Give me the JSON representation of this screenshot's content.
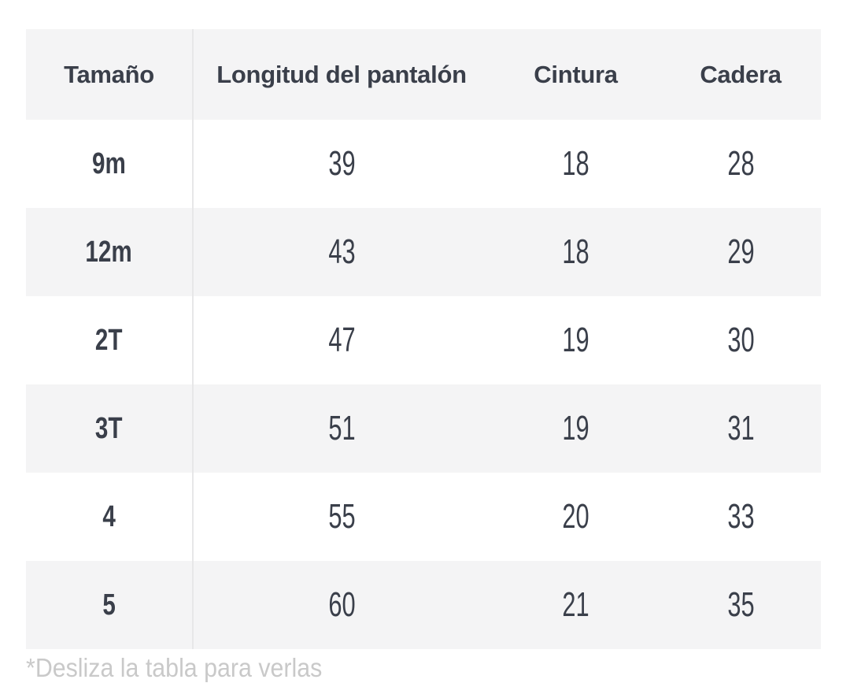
{
  "table": {
    "columns": [
      "Tamaño",
      "Longitud del pantalón",
      "Cintura",
      "Cadera"
    ],
    "rows": [
      {
        "size": "9m",
        "length": "39",
        "waist": "18",
        "hip": "28"
      },
      {
        "size": "12m",
        "length": "43",
        "waist": "18",
        "hip": "29"
      },
      {
        "size": "2T",
        "length": "47",
        "waist": "19",
        "hip": "30"
      },
      {
        "size": "3T",
        "length": "51",
        "waist": "19",
        "hip": "31"
      },
      {
        "size": "4",
        "length": "55",
        "waist": "20",
        "hip": "33"
      },
      {
        "size": "5",
        "length": "60",
        "waist": "21",
        "hip": "35"
      }
    ],
    "colors": {
      "stripe_background": "#f4f4f5",
      "text": "#3a3f4a",
      "divider": "#e7e7e8"
    }
  },
  "footnote": {
    "text": "*Desliza la tabla para verlas",
    "color": "#c9c9c9"
  }
}
